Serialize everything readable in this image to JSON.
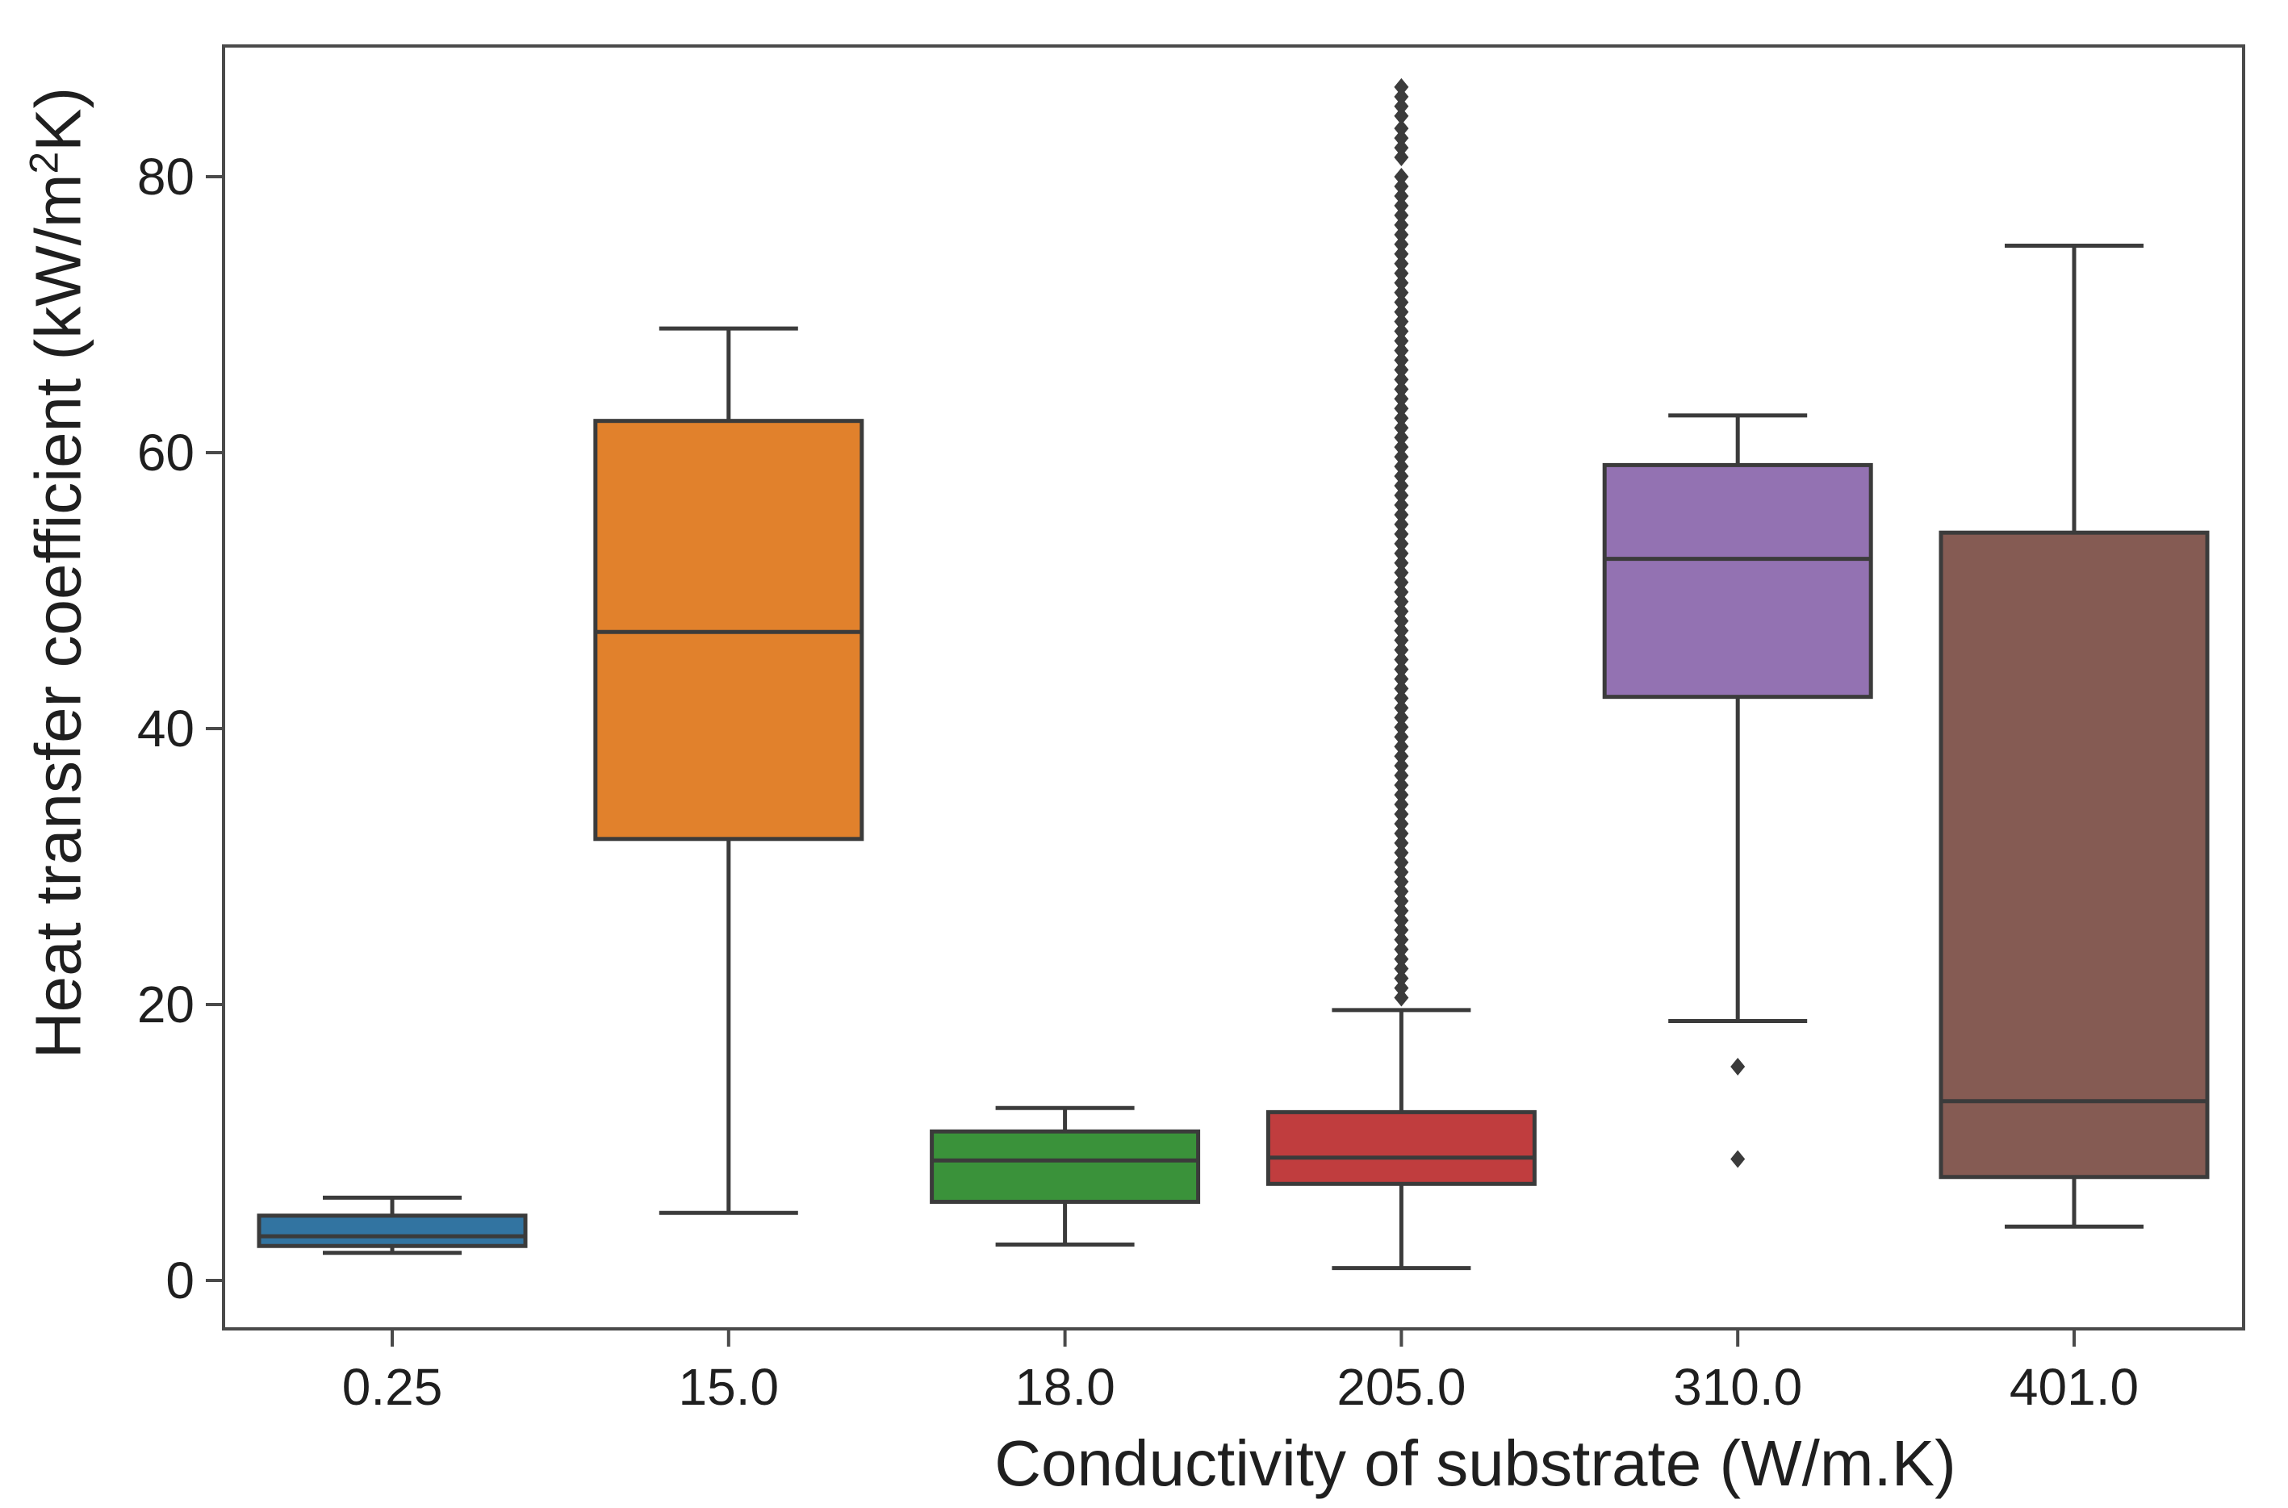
{
  "figure": {
    "background": "#ffffff",
    "axis_color": "#4a4a4a",
    "line_color": "#3b3b3b",
    "text_color": "#1f1f1f",
    "xlabel": "Conductivity of substrate (W/m.K)",
    "ylabel": {
      "pre": "Heat transfer coefficient (kW/m",
      "sup": "2",
      "post": "K)"
    }
  },
  "chart_data": {
    "type": "boxplot",
    "title": "",
    "xlabel": "Conductivity of substrate (W/m.K)",
    "ylabel": "Heat transfer coefficient (kW/m^2K)",
    "ylim": [
      -3.5,
      89.5
    ],
    "grid": false,
    "legend": "none",
    "yticks": [
      0,
      20,
      40,
      60,
      80
    ],
    "ytick_labels": [
      "0",
      "20",
      "40",
      "60",
      "80"
    ],
    "categories": [
      "0.25",
      "15.0",
      "18.0",
      "205.0",
      "310.0",
      "401.0"
    ],
    "series": [
      {
        "category": "0.25",
        "color": "#3274a1",
        "whisker_low": 2.0,
        "q1": 2.5,
        "median": 3.2,
        "q3": 4.7,
        "whisker_high": 6.0,
        "outliers": []
      },
      {
        "category": "15.0",
        "color": "#e1812c",
        "whisker_low": 4.9,
        "q1": 32.0,
        "median": 47.0,
        "q3": 62.3,
        "whisker_high": 69.0,
        "outliers": []
      },
      {
        "category": "18.0",
        "color": "#3a923a",
        "whisker_low": 2.6,
        "q1": 5.7,
        "median": 8.7,
        "q3": 10.8,
        "whisker_high": 12.5,
        "outliers": []
      },
      {
        "category": "205.0",
        "color": "#c03d3e",
        "whisker_low": 0.9,
        "q1": 7.0,
        "median": 8.9,
        "q3": 12.2,
        "whisker_high": 19.6,
        "outliers": [
          20.5,
          21.2,
          21.9,
          22.6,
          23.3,
          24.0,
          24.7,
          25.4,
          26.1,
          26.8,
          27.5,
          28.2,
          28.9,
          29.6,
          30.3,
          31.0,
          31.7,
          32.4,
          33.1,
          33.8,
          34.5,
          35.2,
          35.9,
          36.6,
          37.3,
          38.0,
          38.7,
          39.4,
          40.1,
          40.8,
          41.5,
          42.2,
          42.9,
          43.6,
          44.3,
          45.0,
          45.7,
          46.4,
          47.1,
          47.8,
          48.5,
          49.2,
          49.9,
          50.6,
          51.3,
          52.0,
          52.7,
          53.4,
          54.1,
          54.8,
          55.5,
          56.2,
          56.9,
          57.6,
          58.3,
          59.0,
          59.7,
          60.4,
          61.1,
          61.8,
          62.5,
          63.2,
          63.9,
          64.6,
          65.3,
          66.0,
          66.7,
          67.4,
          68.1,
          68.8,
          69.5,
          70.2,
          70.9,
          71.6,
          72.3,
          73.0,
          73.7,
          74.4,
          75.1,
          75.8,
          76.5,
          77.2,
          77.9,
          78.6,
          79.3,
          80.0,
          81.4,
          82.1,
          82.8,
          83.5,
          84.4,
          85.1,
          85.8,
          86.5
        ]
      },
      {
        "category": "310.0",
        "color": "#9372b2",
        "whisker_low": 18.8,
        "q1": 42.3,
        "median": 52.3,
        "q3": 59.1,
        "whisker_high": 62.7,
        "outliers": [
          15.5,
          8.8
        ]
      },
      {
        "category": "401.0",
        "color": "#855b53",
        "whisker_low": 3.9,
        "q1": 7.5,
        "median": 13.0,
        "q3": 54.2,
        "whisker_high": 75.0,
        "outliers": []
      }
    ]
  }
}
